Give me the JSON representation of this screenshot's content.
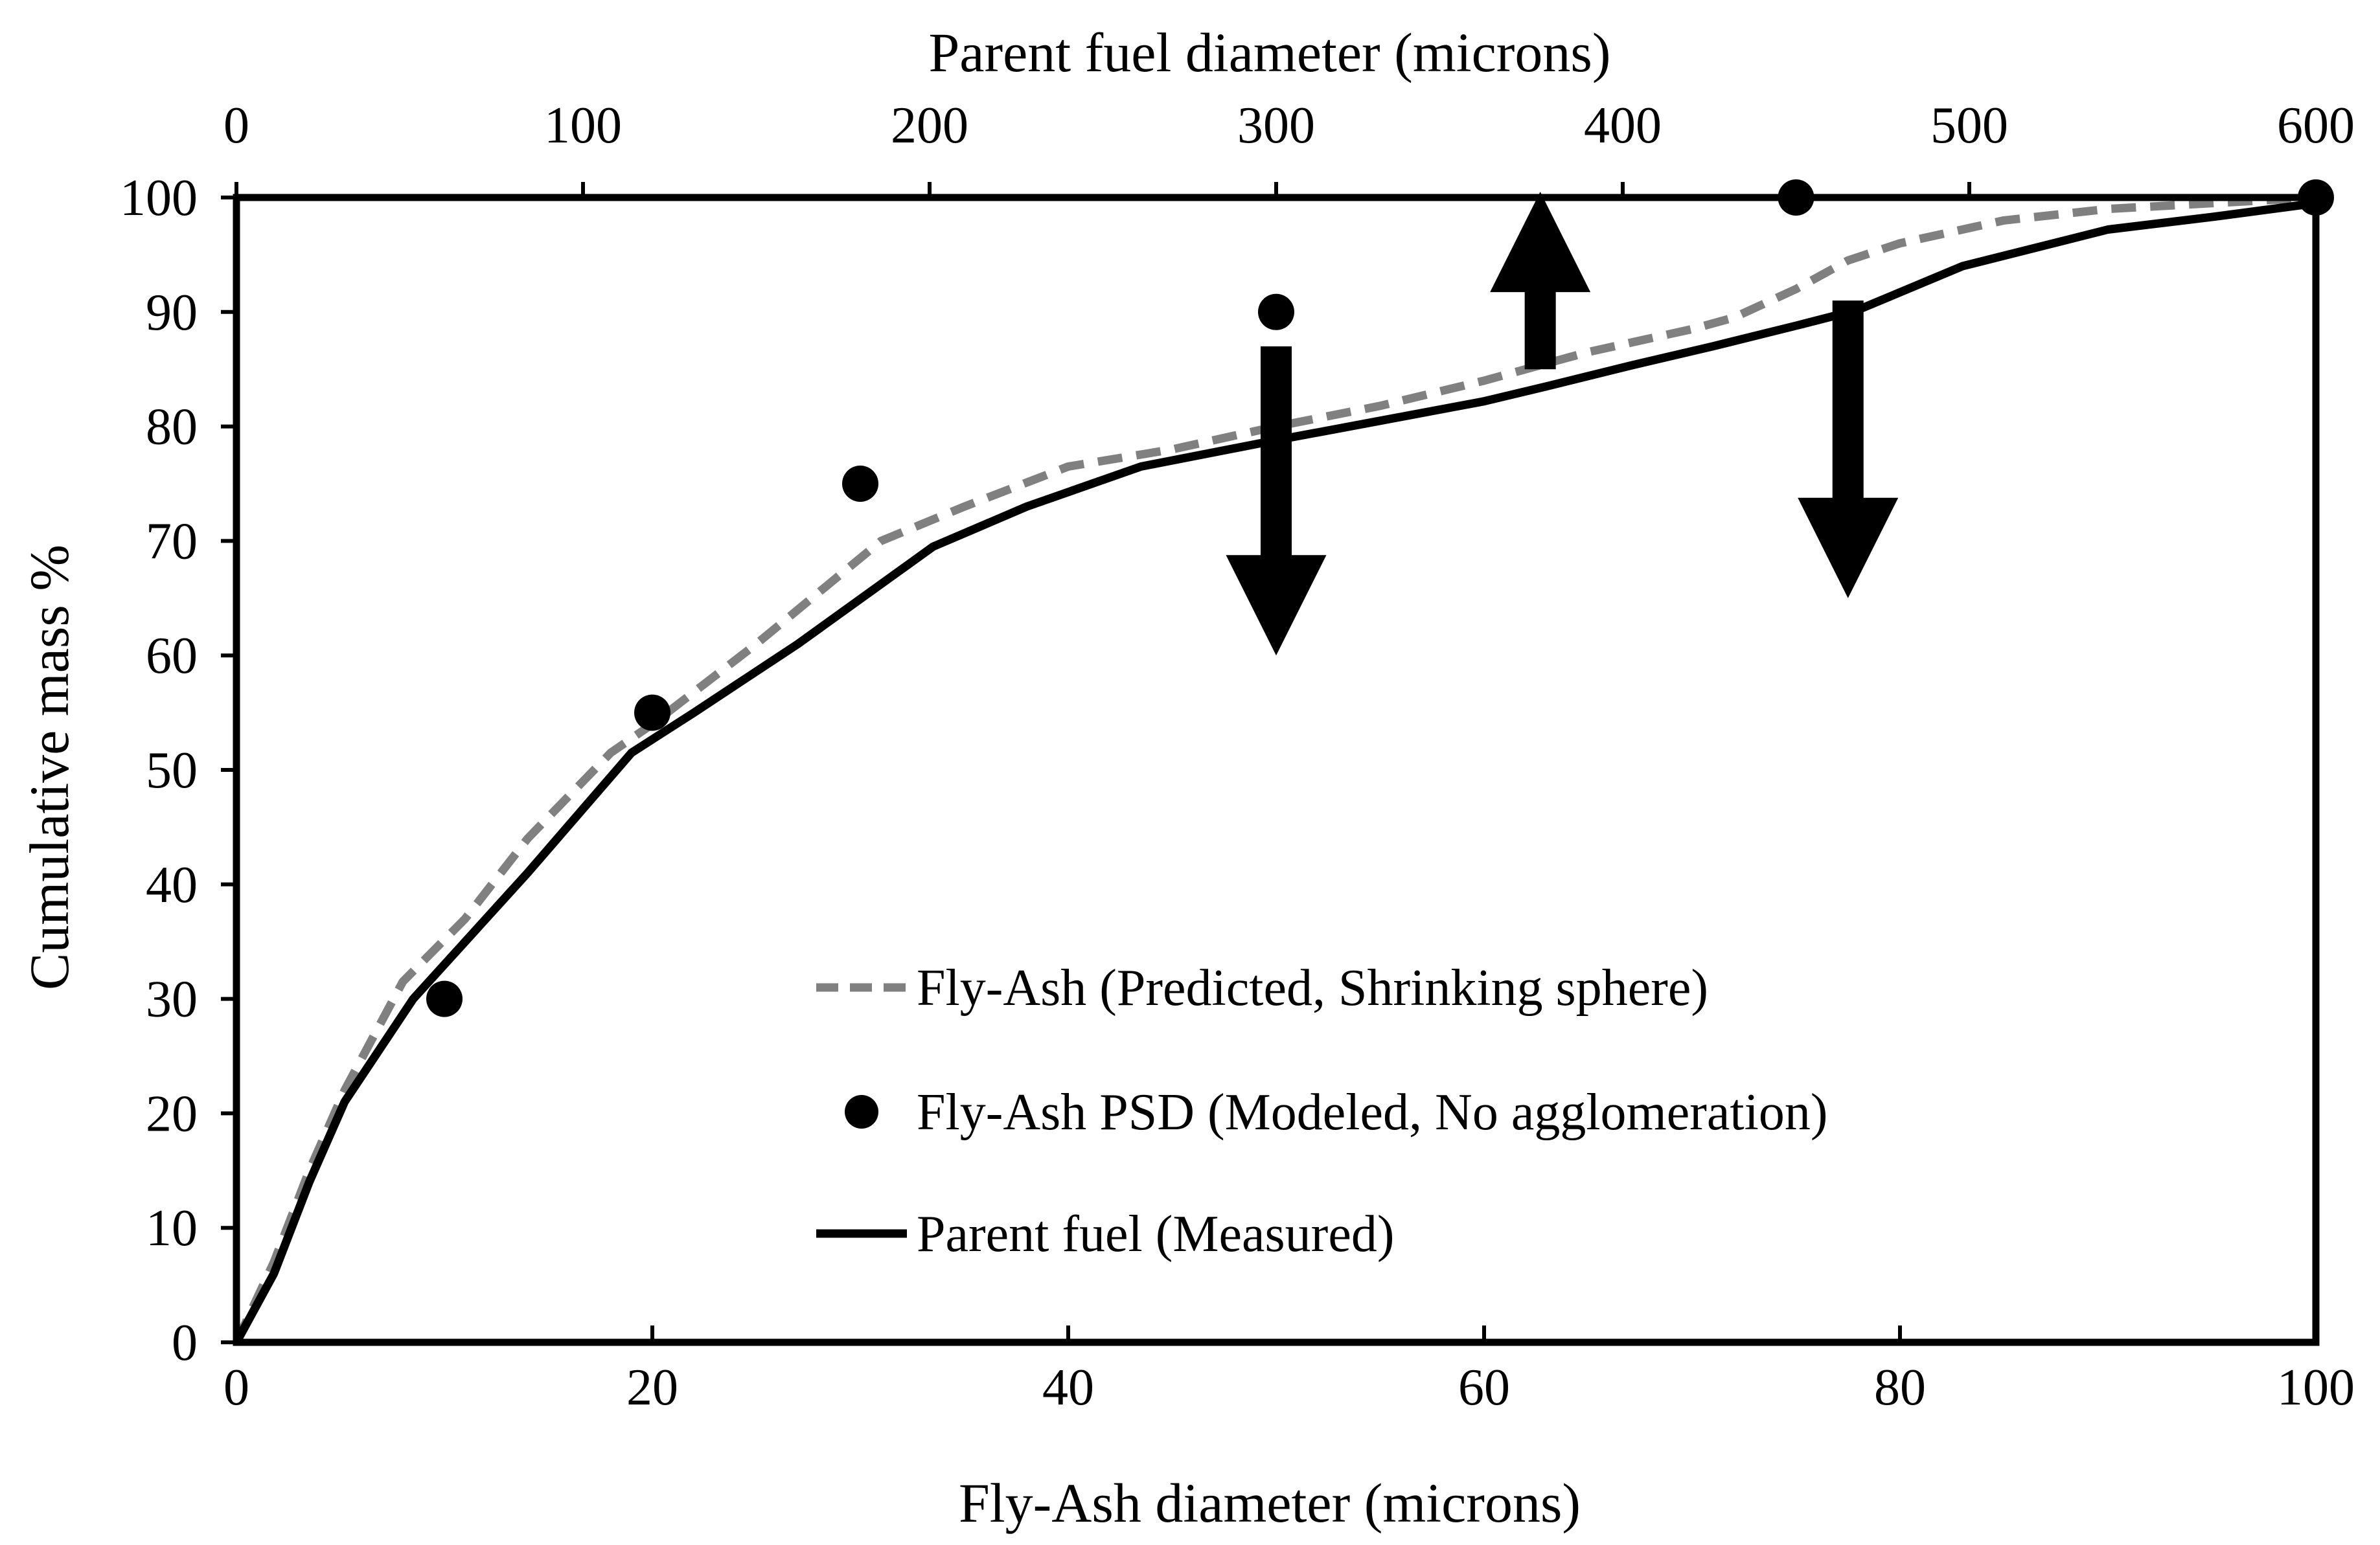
{
  "chart_data": {
    "type": "line",
    "xlabel": "Fly-Ash diameter (microns)",
    "x2label": "Parent fuel diameter (microns)",
    "ylabel": "Cumulative mass %",
    "xlim": [
      0,
      100
    ],
    "x2lim": [
      0,
      600
    ],
    "ylim": [
      0,
      100
    ],
    "grid": false,
    "x_ticks": [
      0,
      20,
      40,
      60,
      80,
      100
    ],
    "x_tick_labels": [
      "0",
      "20",
      "40",
      "60",
      "80",
      "100"
    ],
    "x2_ticks": [
      0,
      100,
      200,
      300,
      400,
      500,
      600
    ],
    "x2_tick_labels": [
      "0",
      "100",
      "200",
      "300",
      "400",
      "500",
      "600"
    ],
    "y_ticks": [
      0,
      10,
      20,
      30,
      40,
      50,
      60,
      70,
      80,
      90,
      100
    ],
    "y_tick_labels": [
      "0",
      "10",
      "20",
      "30",
      "40",
      "50",
      "60",
      "70",
      "80",
      "90",
      "100"
    ],
    "legend_position": "lower-center",
    "series": [
      {
        "name": "Fly-Ash (Predicted, Shrinking sphere)",
        "style": "dashed",
        "color": "#808080",
        "x": [
          0,
          1.8,
          3.5,
          5.2,
          8,
          11,
          14,
          18,
          20,
          25,
          28,
          31,
          35,
          40,
          45,
          50,
          55,
          60,
          65,
          70,
          72,
          75,
          77.5,
          80,
          85,
          90,
          95,
          100
        ],
        "y": [
          0,
          7,
          15,
          22,
          31.5,
          37,
          44,
          51.5,
          54,
          61,
          65.5,
          70,
          73,
          76.5,
          78,
          80,
          81.8,
          84,
          86.5,
          88.5,
          89.5,
          92,
          94.5,
          96,
          98,
          99,
          99.5,
          100
        ]
      },
      {
        "name": "Fly-Ash PSD (Modeled, No agglomeration)",
        "style": "markers",
        "color": "#000000",
        "x": [
          10,
          20,
          30,
          50,
          75,
          100
        ],
        "y": [
          30,
          55,
          75,
          90,
          100,
          100
        ]
      },
      {
        "name": "Parent fuel (Measured)",
        "style": "solid",
        "color": "#000000",
        "x": [
          0,
          1.8,
          3.5,
          5.2,
          8.5,
          11,
          14,
          19,
          22,
          27,
          33.5,
          38,
          43.5,
          50,
          55,
          60,
          63,
          67,
          71,
          75,
          78,
          83,
          90,
          95,
          100
        ],
        "y": [
          0,
          6,
          14,
          21,
          30,
          35,
          41,
          51.5,
          55,
          61,
          69.5,
          73,
          76.5,
          78.8,
          80.5,
          82.2,
          83.5,
          85.3,
          87,
          88.8,
          90.2,
          94,
          97.2,
          98.3,
          99.5
        ]
      }
    ],
    "annotations": [
      {
        "type": "arrow",
        "direction": "down",
        "x": 50,
        "y_from": 87,
        "y_to": 60
      },
      {
        "type": "arrow",
        "direction": "up",
        "x": 62.7,
        "y_from": 85,
        "y_to": 100.5
      },
      {
        "type": "arrow",
        "direction": "down",
        "x": 77.5,
        "y_from": 91,
        "y_to": 65
      }
    ]
  }
}
